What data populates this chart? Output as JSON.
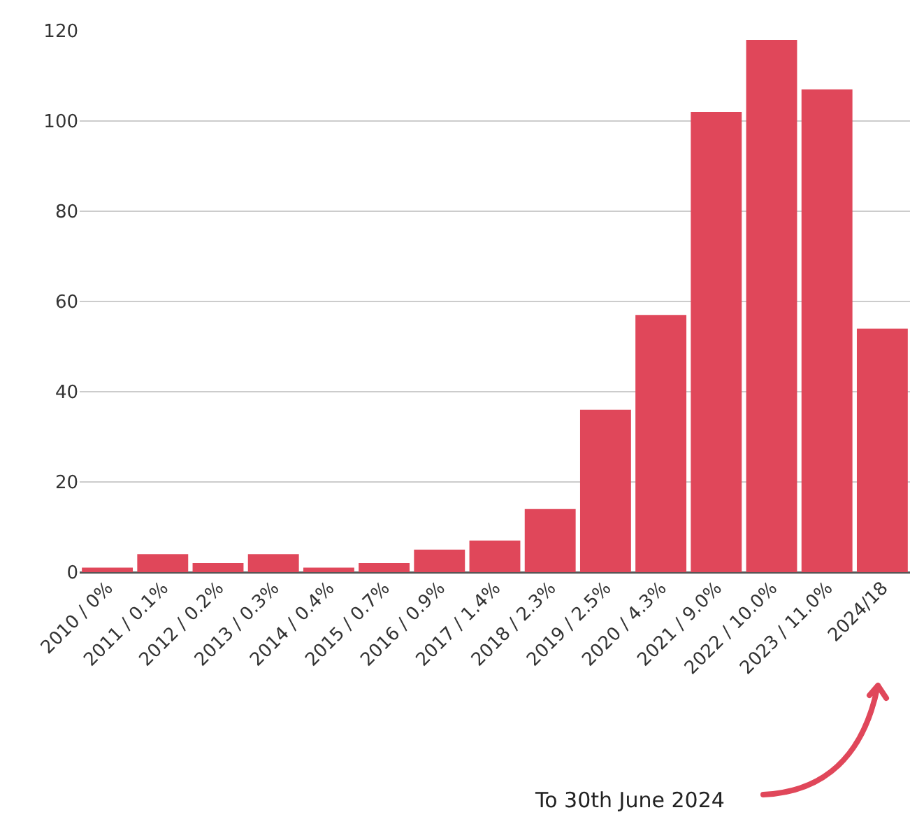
{
  "chart_data": {
    "type": "bar",
    "categories": [
      "2010 / 0%",
      "2011 / 0.1%",
      "2012 / 0.2%",
      "2013 / 0.3%",
      "2014 / 0.4%",
      "2015 / 0.7%",
      "2016 / 0.9%",
      "2017 / 1.4%",
      "2018 / 2.3%",
      "2019 / 2.5%",
      "2020 / 4.3%",
      "2021 / 9.0%",
      "2022 / 10.0%",
      "2023 / 11.0%",
      "2024/18"
    ],
    "values": [
      1,
      4,
      2,
      4,
      1,
      2,
      5,
      7,
      14,
      36,
      57,
      102,
      118,
      107,
      54
    ],
    "color": "#e0475a",
    "ylim": [
      0,
      120
    ],
    "yticks": [
      0,
      20,
      40,
      60,
      80,
      100,
      120
    ],
    "grid": "y",
    "annotations": [
      "To 30th June 2024"
    ]
  }
}
